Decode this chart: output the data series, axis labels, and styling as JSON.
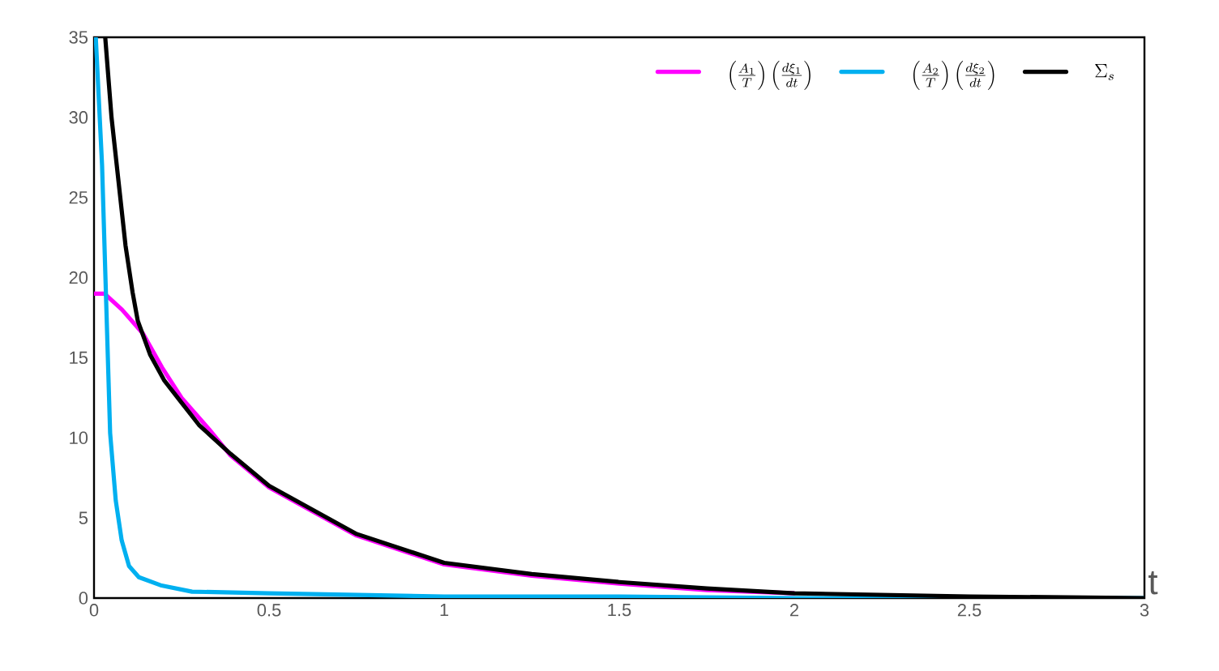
{
  "chart_data": {
    "type": "line",
    "xlabel": "t",
    "xlim": [
      0,
      3
    ],
    "ylim": [
      0,
      35
    ],
    "xticks": [
      0,
      0.5,
      1,
      1.5,
      2,
      2.5,
      3
    ],
    "yticks": [
      0,
      5,
      10,
      15,
      20,
      25,
      30,
      35
    ],
    "legend": "top right",
    "marker": "none",
    "line_style": "solid",
    "series": [
      {
        "name": "\\left(\\frac{A_1}{T}\\right)\\left(\\frac{d\\xi_1}{dt}\\right)",
        "color": "#ff00ff",
        "x": [
          0,
          0.03,
          0.08,
          0.14,
          0.194,
          0.25,
          0.33,
          0.39,
          0.5,
          0.75,
          1,
          1.25,
          1.5,
          1.75,
          2
        ],
        "values": [
          19,
          19,
          18,
          16.5,
          14.4,
          12.5,
          10.5,
          8.9,
          6.9,
          3.9,
          2.1,
          1.4,
          0.9,
          0.5,
          0.3
        ]
      },
      {
        "name": "\\left(\\frac{A_2}{T}\\right)\\left(\\frac{d\\xi_2}{dt}\\right)",
        "color": "#00b0f0",
        "x": [
          0.005,
          0.023,
          0.046,
          0.062,
          0.079,
          0.1,
          0.128,
          0.19,
          0.28,
          0.5,
          1,
          1.5,
          2,
          2.5,
          3
        ],
        "values": [
          35,
          27,
          10.3,
          6.1,
          3.6,
          2,
          1.3,
          0.8,
          0.4,
          0.3,
          0.1,
          0.1,
          0,
          0,
          0
        ]
      },
      {
        "name": "\\Sigma_s",
        "color": "#000000",
        "x": [
          0.032,
          0.05,
          0.065,
          0.09,
          0.11,
          0.125,
          0.16,
          0.2,
          0.25,
          0.3,
          0.39,
          0.5,
          0.75,
          1,
          1.25,
          1.5,
          1.75,
          2,
          2.5,
          3
        ],
        "values": [
          35,
          30,
          27,
          22,
          19.1,
          17.3,
          15.2,
          13.6,
          12.2,
          10.8,
          9,
          7,
          4,
          2.2,
          1.5,
          1,
          0.6,
          0.3,
          0.1,
          0
        ]
      }
    ]
  }
}
